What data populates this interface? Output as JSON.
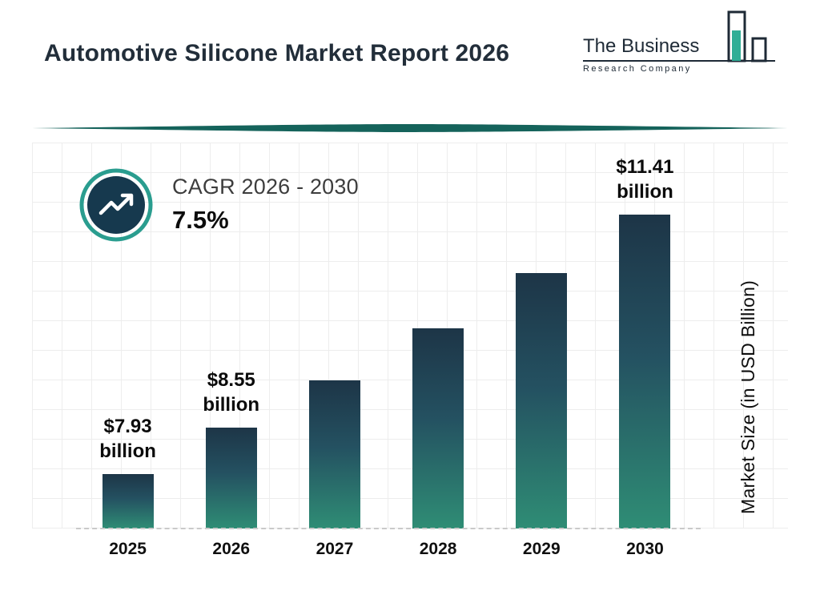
{
  "title": "Automotive Silicone Market Report 2026",
  "logo": {
    "line1": "The Business",
    "line2": "Research Company"
  },
  "cagr": {
    "label": "CAGR 2026 - 2030",
    "value": "7.5%"
  },
  "y_axis_label": "Market Size (in USD Billion)",
  "colors": {
    "accent_teal": "#2a9d8f",
    "dark_navy": "#1d3547",
    "bar_gradient_top": "#1d3547",
    "bar_gradient_bottom": "#2f8d75",
    "divider_teal": "#15635b"
  },
  "chart_data": {
    "type": "bar",
    "categories": [
      "2025",
      "2026",
      "2027",
      "2028",
      "2029",
      "2030"
    ],
    "values": [
      7.93,
      8.55,
      9.19,
      9.88,
      10.62,
      11.41
    ],
    "value_labels": [
      [
        "$7.93",
        "billion"
      ],
      [
        "$8.55",
        "billion"
      ],
      null,
      null,
      null,
      [
        "$11.41",
        "billion"
      ]
    ],
    "title": "Automotive Silicone Market Report 2026",
    "xlabel": "",
    "ylabel": "Market Size (in USD Billion)",
    "ylim": [
      7.2,
      11.6
    ],
    "grid": true,
    "legend": "none",
    "cagr_label": "CAGR 2026 - 2030",
    "cagr_value": "7.5%"
  }
}
